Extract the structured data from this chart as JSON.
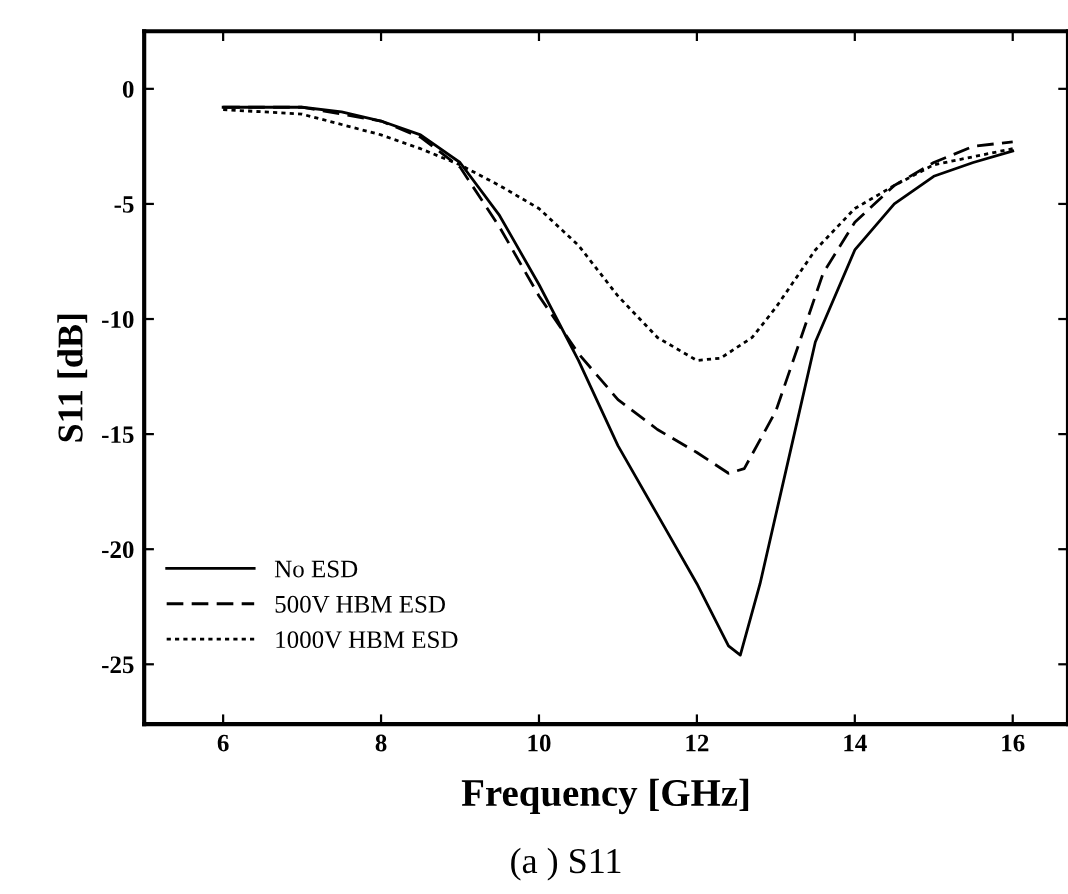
{
  "chart_data": {
    "type": "line",
    "xlabel": "Frequency [GHz]",
    "ylabel": "S11 [dB]",
    "xlim": [
      5,
      16.7
    ],
    "ylim": [
      -27.6,
      2.5
    ],
    "xticks": [
      6,
      8,
      10,
      12,
      14,
      16
    ],
    "yticks": [
      0,
      -5,
      -10,
      -15,
      -20,
      -25
    ],
    "grid": false,
    "legend": "bottom left",
    "marker": "none",
    "annotations": [
      "(a ) S11"
    ],
    "series": [
      {
        "name": "No ESD",
        "color": "#000000",
        "line_style": "solid",
        "x": [
          6,
          7,
          7.5,
          8,
          8.5,
          9,
          9.5,
          10,
          10.5,
          11,
          11.5,
          12,
          12.4,
          12.55,
          12.8,
          13.2,
          13.5,
          14,
          14.5,
          15,
          15.5,
          16
        ],
        "values": [
          -0.8,
          -0.8,
          -1.0,
          -1.4,
          -2.0,
          -3.2,
          -5.5,
          -8.5,
          -11.8,
          -15.5,
          -18.5,
          -21.5,
          -24.2,
          -24.6,
          -21.5,
          -15.5,
          -11,
          -7,
          -5,
          -3.8,
          -3.2,
          -2.7
        ]
      },
      {
        "name": "500V HBM ESD",
        "color": "#000000",
        "line_style": "dashed",
        "x": [
          6,
          7,
          8,
          8.5,
          9,
          9.5,
          10,
          10.5,
          11,
          11.5,
          12,
          12.4,
          12.6,
          13,
          13.3,
          13.6,
          14,
          14.5,
          15,
          15.5,
          16
        ],
        "values": [
          -0.8,
          -0.8,
          -1.4,
          -2.1,
          -3.4,
          -6,
          -9,
          -11.5,
          -13.5,
          -14.8,
          -15.8,
          -16.7,
          -16.5,
          -14,
          -11,
          -8,
          -5.8,
          -4.2,
          -3.2,
          -2.5,
          -2.3
        ]
      },
      {
        "name": "1000V HBM ESD",
        "color": "#000000",
        "line_style": "dotted",
        "x": [
          6,
          7,
          8,
          8.5,
          9,
          9.5,
          10,
          10.5,
          11,
          11.5,
          12,
          12.3,
          12.7,
          13,
          13.5,
          14,
          14.5,
          15,
          16
        ],
        "values": [
          -0.9,
          -1.1,
          -2.0,
          -2.6,
          -3.3,
          -4.2,
          -5.2,
          -6.8,
          -9,
          -10.8,
          -11.8,
          -11.7,
          -10.8,
          -9.5,
          -7,
          -5.2,
          -4.2,
          -3.3,
          -2.6
        ]
      }
    ]
  }
}
